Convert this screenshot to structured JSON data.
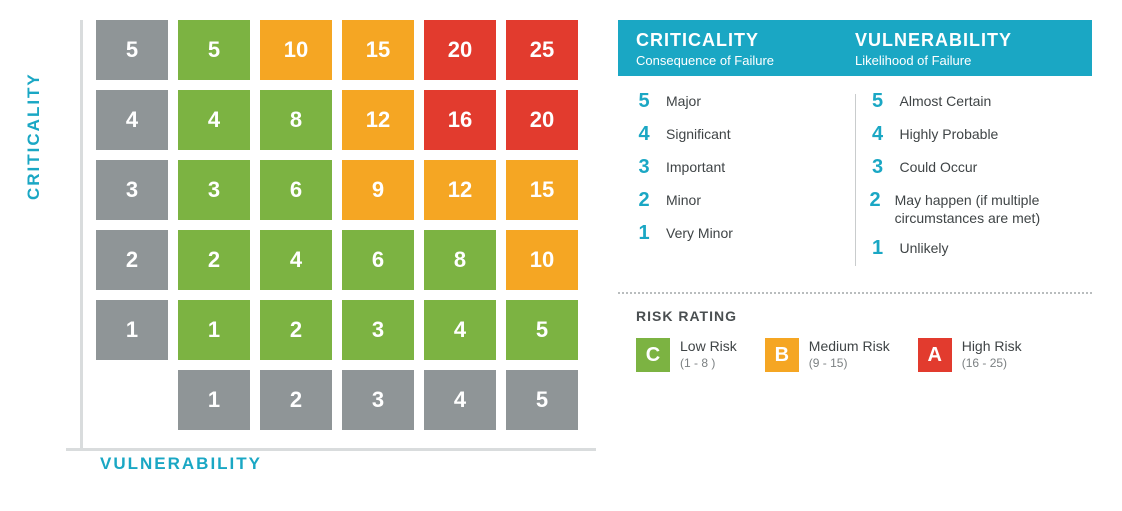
{
  "colors": {
    "teal": "#1aa7c4",
    "gray_cell": "#8f9597",
    "green": "#7cb342",
    "orange": "#f5a623",
    "red": "#e23b2e",
    "axis_line": "#d9dcdd",
    "text_dark": "#3f4446"
  },
  "matrix": {
    "y_axis_label": "CRITICALITY",
    "x_axis_label": "VULNERABILITY",
    "cell_fontsize": 22,
    "rows": [
      [
        {
          "v": "5",
          "c": "gray"
        },
        {
          "v": "5",
          "c": "green"
        },
        {
          "v": "10",
          "c": "orange"
        },
        {
          "v": "15",
          "c": "orange"
        },
        {
          "v": "20",
          "c": "red"
        },
        {
          "v": "25",
          "c": "red"
        }
      ],
      [
        {
          "v": "4",
          "c": "gray"
        },
        {
          "v": "4",
          "c": "green"
        },
        {
          "v": "8",
          "c": "green"
        },
        {
          "v": "12",
          "c": "orange"
        },
        {
          "v": "16",
          "c": "red"
        },
        {
          "v": "20",
          "c": "red"
        }
      ],
      [
        {
          "v": "3",
          "c": "gray"
        },
        {
          "v": "3",
          "c": "green"
        },
        {
          "v": "6",
          "c": "green"
        },
        {
          "v": "9",
          "c": "orange"
        },
        {
          "v": "12",
          "c": "orange"
        },
        {
          "v": "15",
          "c": "orange"
        }
      ],
      [
        {
          "v": "2",
          "c": "gray"
        },
        {
          "v": "2",
          "c": "green"
        },
        {
          "v": "4",
          "c": "green"
        },
        {
          "v": "6",
          "c": "green"
        },
        {
          "v": "8",
          "c": "green"
        },
        {
          "v": "10",
          "c": "orange"
        }
      ],
      [
        {
          "v": "1",
          "c": "gray"
        },
        {
          "v": "1",
          "c": "green"
        },
        {
          "v": "2",
          "c": "green"
        },
        {
          "v": "3",
          "c": "green"
        },
        {
          "v": "4",
          "c": "green"
        },
        {
          "v": "5",
          "c": "green"
        }
      ],
      [
        {
          "v": "",
          "c": "empty"
        },
        {
          "v": "1",
          "c": "gray"
        },
        {
          "v": "2",
          "c": "gray"
        },
        {
          "v": "3",
          "c": "gray"
        },
        {
          "v": "4",
          "c": "gray"
        },
        {
          "v": "5",
          "c": "gray"
        }
      ]
    ]
  },
  "legend": {
    "header": {
      "left_title": "CRITICALITY",
      "left_sub": "Consequence of Failure",
      "right_title": "VULNERABILITY",
      "right_sub": "Likelihood of Failure"
    },
    "criticality_scale": [
      {
        "n": "5",
        "t": "Major"
      },
      {
        "n": "4",
        "t": "Significant"
      },
      {
        "n": "3",
        "t": "Important"
      },
      {
        "n": "2",
        "t": "Minor"
      },
      {
        "n": "1",
        "t": "Very Minor"
      }
    ],
    "vulnerability_scale": [
      {
        "n": "5",
        "t": "Almost Certain"
      },
      {
        "n": "4",
        "t": "Highly Probable"
      },
      {
        "n": "3",
        "t": "Could Occur"
      },
      {
        "n": "2",
        "t": "May happen (if multiple circumstances are met)"
      },
      {
        "n": "1",
        "t": "Unlikely"
      }
    ],
    "risk_rating": {
      "title": "RISK RATING",
      "items": [
        {
          "badge": "C",
          "color": "green",
          "label": "Low Risk",
          "range": "(1 - 8 )"
        },
        {
          "badge": "B",
          "color": "orange",
          "label": "Medium Risk",
          "range": "(9 - 15)"
        },
        {
          "badge": "A",
          "color": "red",
          "label": "High Risk",
          "range": "(16 - 25)"
        }
      ]
    }
  }
}
